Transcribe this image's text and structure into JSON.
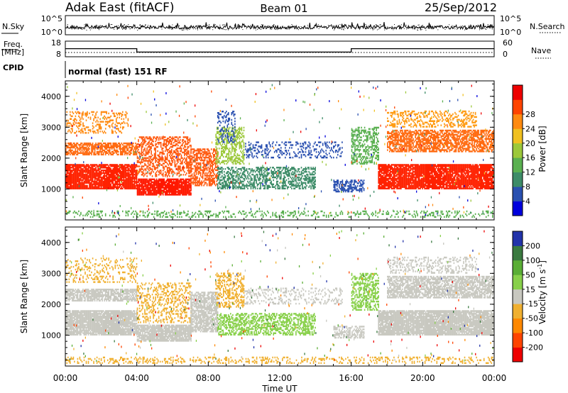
{
  "header": {
    "title_left": "Adak East (fitACF)",
    "title_center": "Beam 01",
    "title_right": "25/Sep/2012"
  },
  "top_panels": {
    "nsky_label": "N.Sky",
    "nsky_ticks": [
      "10^5",
      "10^0"
    ],
    "nsearch_label": "N.Search",
    "nsearch_ticks": [
      "10^5",
      "10^0"
    ],
    "freq_label": "Freq.",
    "freq_unit": "[MHz]",
    "freq_ticks": [
      "18",
      "8"
    ],
    "nave_label": "Nave",
    "nave_ticks": [
      "60",
      "0"
    ],
    "cpid_label": "CPID",
    "cpid_text": "normal (fast) 151 RF",
    "freq_steps": [
      {
        "x0": 0,
        "x1": 4,
        "value": 13.2
      },
      {
        "x0": 4,
        "x1": 16,
        "value": 11.0
      },
      {
        "x0": 16,
        "x1": 24,
        "value": 13.2
      }
    ]
  },
  "chart_data": [
    {
      "type": "heatmap",
      "name": "power",
      "ylabel": "Slant Range [km]",
      "xlabel": "",
      "xlim": [
        0,
        24
      ],
      "ylim": [
        0,
        4500
      ],
      "yticks": [
        1000,
        2000,
        3000,
        4000
      ],
      "ytick_labels": [
        "1000",
        "2000",
        "3000",
        "4000"
      ],
      "colorbar": {
        "label": "Power [dB]",
        "ticks": [
          "4",
          "8",
          "12",
          "16",
          "20",
          "24",
          "28"
        ],
        "colors": [
          "#0000dd",
          "#2a50b0",
          "#3d8c68",
          "#5ab050",
          "#9cc83a",
          "#f0c020",
          "#ff8a10",
          "#ff4400",
          "#ee0000"
        ]
      }
    },
    {
      "type": "heatmap",
      "name": "velocity",
      "ylabel": "Slant Range [km]",
      "xlabel": "Time UT",
      "xlim": [
        0,
        24
      ],
      "ylim": [
        0,
        4500
      ],
      "xticks": [
        "00:00",
        "04:00",
        "08:00",
        "12:00",
        "16:00",
        "20:00",
        "00:00"
      ],
      "yticks": [
        1000,
        2000,
        3000,
        4000
      ],
      "ytick_labels": [
        "1000",
        "2000",
        "3000",
        "4000"
      ],
      "colorbar": {
        "label": "Velocity [m s",
        "label_sup": "-1",
        "label_end": "]",
        "ticks": [
          "200",
          "100",
          "50",
          "15",
          "-15",
          "-50",
          "-100",
          "-200"
        ],
        "colors": [
          "#2233aa",
          "#3a7a40",
          "#5aae35",
          "#88d04a",
          "#c8c8c0",
          "#f0b030",
          "#ff8800",
          "#ff4400",
          "#ee0000"
        ]
      }
    }
  ],
  "regions": {
    "power": [
      {
        "t0": 0,
        "t1": 4,
        "r0": 1000,
        "r1": 1800,
        "c": "#ff2200",
        "d": 0.9
      },
      {
        "t0": 0,
        "t1": 4,
        "r0": 2100,
        "r1": 2500,
        "c": "#ff6a10",
        "d": 0.7
      },
      {
        "t0": 0,
        "t1": 3.5,
        "r0": 2800,
        "r1": 3500,
        "c": "#ff8a10",
        "d": 0.25
      },
      {
        "t0": 4,
        "t1": 7,
        "r0": 800,
        "r1": 1300,
        "c": "#ff1800",
        "d": 0.9
      },
      {
        "t0": 4,
        "t1": 7,
        "r0": 1400,
        "r1": 2700,
        "c": "#ff5a10",
        "d": 0.45
      },
      {
        "t0": 7,
        "t1": 8.5,
        "r0": 1100,
        "r1": 2300,
        "c": "#ff5a10",
        "d": 0.55
      },
      {
        "t0": 8.4,
        "t1": 10,
        "r0": 1800,
        "r1": 3000,
        "c": "#9cc83a",
        "d": 0.5
      },
      {
        "t0": 8.5,
        "t1": 9.5,
        "r0": 2500,
        "r1": 3500,
        "c": "#2a50b0",
        "d": 0.25
      },
      {
        "t0": 8.5,
        "t1": 14,
        "r0": 1000,
        "r1": 1700,
        "c": "#3d8c68",
        "d": 0.5
      },
      {
        "t0": 10,
        "t1": 15.5,
        "r0": 2000,
        "r1": 2500,
        "c": "#2a50b0",
        "d": 0.25
      },
      {
        "t0": 15,
        "t1": 16.7,
        "r0": 900,
        "r1": 1300,
        "c": "#2a50b0",
        "d": 0.55
      },
      {
        "t0": 16,
        "t1": 17.5,
        "r0": 1800,
        "r1": 3000,
        "c": "#5ab050",
        "d": 0.45
      },
      {
        "t0": 17.5,
        "t1": 24,
        "r0": 1000,
        "r1": 1800,
        "c": "#ff2200",
        "d": 0.9
      },
      {
        "t0": 18,
        "t1": 24,
        "r0": 2200,
        "r1": 2900,
        "c": "#ff6a10",
        "d": 0.65
      },
      {
        "t0": 18,
        "t1": 23,
        "r0": 3000,
        "r1": 3500,
        "c": "#ff9a10",
        "d": 0.3
      },
      {
        "t0": 0,
        "t1": 24,
        "r0": 80,
        "r1": 300,
        "c": "#5ab050",
        "d": 0.25
      }
    ],
    "velocity": [
      {
        "t0": 0,
        "t1": 4,
        "r0": 1000,
        "r1": 1800,
        "c": "#c8c8c0",
        "d": 0.9
      },
      {
        "t0": 0,
        "t1": 4,
        "r0": 2100,
        "r1": 2500,
        "c": "#c8c8c0",
        "d": 0.75
      },
      {
        "t0": 0,
        "t1": 4,
        "r0": 2700,
        "r1": 3500,
        "c": "#f0b030",
        "d": 0.2
      },
      {
        "t0": 4,
        "t1": 7,
        "r0": 800,
        "r1": 1300,
        "c": "#c8c8c0",
        "d": 0.9
      },
      {
        "t0": 4,
        "t1": 7,
        "r0": 1400,
        "r1": 2700,
        "c": "#f0b030",
        "d": 0.3
      },
      {
        "t0": 7,
        "t1": 8.5,
        "r0": 1100,
        "r1": 2400,
        "c": "#c8c8c0",
        "d": 0.7
      },
      {
        "t0": 8.4,
        "t1": 10,
        "r0": 1900,
        "r1": 3000,
        "c": "#f0b030",
        "d": 0.4
      },
      {
        "t0": 8.5,
        "t1": 14,
        "r0": 1000,
        "r1": 1700,
        "c": "#88d04a",
        "d": 0.5
      },
      {
        "t0": 10,
        "t1": 15.5,
        "r0": 2000,
        "r1": 2500,
        "c": "#c8c8c0",
        "d": 0.25
      },
      {
        "t0": 15,
        "t1": 16.7,
        "r0": 900,
        "r1": 1300,
        "c": "#c8c8c0",
        "d": 0.55
      },
      {
        "t0": 16,
        "t1": 17.5,
        "r0": 1800,
        "r1": 3000,
        "c": "#88d04a",
        "d": 0.45
      },
      {
        "t0": 17.5,
        "t1": 24,
        "r0": 1000,
        "r1": 1800,
        "c": "#c8c8c0",
        "d": 0.9
      },
      {
        "t0": 18,
        "t1": 24,
        "r0": 2200,
        "r1": 2900,
        "c": "#c8c8c0",
        "d": 0.7
      },
      {
        "t0": 18,
        "t1": 23,
        "r0": 3000,
        "r1": 3500,
        "c": "#c8c8c0",
        "d": 0.3
      },
      {
        "t0": 0,
        "t1": 24,
        "r0": 80,
        "r1": 300,
        "c": "#f0b030",
        "d": 0.25
      }
    ]
  }
}
